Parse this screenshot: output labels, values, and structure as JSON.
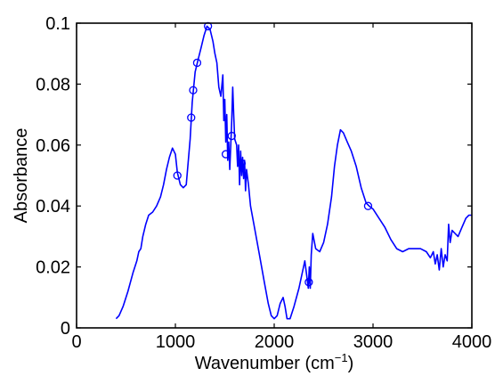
{
  "chart_data": {
    "type": "line",
    "title": "",
    "xlabel": "Wavenumber (cm",
    "xlabel_sup": "−1",
    "xlabel_close": ")",
    "ylabel": "Absorbance",
    "xlim": [
      0,
      4000
    ],
    "ylim": [
      0,
      0.1
    ],
    "x_ticks": [
      0,
      1000,
      2000,
      3000,
      4000
    ],
    "x_tick_labels": [
      "0",
      "1000",
      "2000",
      "3000",
      "4000"
    ],
    "y_ticks": [
      0,
      0.02,
      0.04,
      0.06,
      0.08,
      0.1
    ],
    "y_tick_labels": [
      "0",
      "0.02",
      "0.04",
      "0.06",
      "0.08",
      "0.1"
    ],
    "grid": false,
    "legend": "none",
    "line_color": "#0000ff",
    "series": [
      {
        "values": [
          [
            400,
            0.003
          ],
          [
            430,
            0.004
          ],
          [
            470,
            0.007
          ],
          [
            520,
            0.012
          ],
          [
            570,
            0.018
          ],
          [
            610,
            0.022
          ],
          [
            630,
            0.025
          ],
          [
            650,
            0.026
          ],
          [
            670,
            0.03
          ],
          [
            700,
            0.034
          ],
          [
            730,
            0.037
          ],
          [
            770,
            0.038
          ],
          [
            810,
            0.04
          ],
          [
            850,
            0.043
          ],
          [
            880,
            0.047
          ],
          [
            910,
            0.052
          ],
          [
            940,
            0.056
          ],
          [
            970,
            0.059
          ],
          [
            1000,
            0.057
          ],
          [
            1020,
            0.051
          ],
          [
            1050,
            0.047
          ],
          [
            1080,
            0.046
          ],
          [
            1110,
            0.047
          ],
          [
            1150,
            0.062
          ],
          [
            1170,
            0.074
          ],
          [
            1200,
            0.084
          ],
          [
            1230,
            0.088
          ],
          [
            1260,
            0.092
          ],
          [
            1290,
            0.096
          ],
          [
            1320,
            0.099
          ],
          [
            1350,
            0.098
          ],
          [
            1380,
            0.094
          ],
          [
            1400,
            0.09
          ],
          [
            1420,
            0.087
          ],
          [
            1440,
            0.079
          ],
          [
            1460,
            0.076
          ],
          [
            1480,
            0.083
          ],
          [
            1490,
            0.068
          ],
          [
            1500,
            0.075
          ],
          [
            1510,
            0.061
          ],
          [
            1520,
            0.07
          ],
          [
            1530,
            0.055
          ],
          [
            1540,
            0.061
          ],
          [
            1550,
            0.052
          ],
          [
            1560,
            0.06
          ],
          [
            1570,
            0.068
          ],
          [
            1580,
            0.079
          ],
          [
            1590,
            0.07
          ],
          [
            1600,
            0.062
          ],
          [
            1620,
            0.06
          ],
          [
            1630,
            0.053
          ],
          [
            1640,
            0.06
          ],
          [
            1650,
            0.047
          ],
          [
            1660,
            0.058
          ],
          [
            1670,
            0.05
          ],
          [
            1680,
            0.056
          ],
          [
            1690,
            0.049
          ],
          [
            1700,
            0.055
          ],
          [
            1710,
            0.045
          ],
          [
            1720,
            0.052
          ],
          [
            1740,
            0.047
          ],
          [
            1760,
            0.04
          ],
          [
            1800,
            0.033
          ],
          [
            1850,
            0.024
          ],
          [
            1900,
            0.015
          ],
          [
            1940,
            0.008
          ],
          [
            1970,
            0.004
          ],
          [
            2000,
            0.003
          ],
          [
            2030,
            0.004
          ],
          [
            2060,
            0.008
          ],
          [
            2090,
            0.01
          ],
          [
            2110,
            0.007
          ],
          [
            2130,
            0.003
          ],
          [
            2160,
            0.003
          ],
          [
            2200,
            0.007
          ],
          [
            2250,
            0.013
          ],
          [
            2290,
            0.019
          ],
          [
            2310,
            0.022
          ],
          [
            2330,
            0.017
          ],
          [
            2345,
            0.013
          ],
          [
            2355,
            0.02
          ],
          [
            2365,
            0.013
          ],
          [
            2375,
            0.024
          ],
          [
            2390,
            0.031
          ],
          [
            2420,
            0.026
          ],
          [
            2460,
            0.025
          ],
          [
            2500,
            0.028
          ],
          [
            2540,
            0.034
          ],
          [
            2580,
            0.043
          ],
          [
            2610,
            0.053
          ],
          [
            2640,
            0.06
          ],
          [
            2670,
            0.065
          ],
          [
            2700,
            0.064
          ],
          [
            2740,
            0.061
          ],
          [
            2780,
            0.058
          ],
          [
            2830,
            0.053
          ],
          [
            2880,
            0.046
          ],
          [
            2930,
            0.041
          ],
          [
            2960,
            0.04
          ],
          [
            3000,
            0.039
          ],
          [
            3060,
            0.036
          ],
          [
            3120,
            0.033
          ],
          [
            3180,
            0.029
          ],
          [
            3240,
            0.026
          ],
          [
            3300,
            0.025
          ],
          [
            3360,
            0.026
          ],
          [
            3420,
            0.026
          ],
          [
            3480,
            0.026
          ],
          [
            3540,
            0.025
          ],
          [
            3580,
            0.023
          ],
          [
            3610,
            0.025
          ],
          [
            3630,
            0.021
          ],
          [
            3650,
            0.024
          ],
          [
            3670,
            0.019
          ],
          [
            3690,
            0.026
          ],
          [
            3710,
            0.02
          ],
          [
            3730,
            0.024
          ],
          [
            3750,
            0.022
          ],
          [
            3765,
            0.034
          ],
          [
            3780,
            0.028
          ],
          [
            3800,
            0.032
          ],
          [
            3830,
            0.031
          ],
          [
            3860,
            0.03
          ],
          [
            3900,
            0.033
          ],
          [
            3940,
            0.036
          ],
          [
            3970,
            0.037
          ],
          [
            4000,
            0.037
          ]
        ]
      }
    ],
    "markers": [
      [
        1020,
        0.05
      ],
      [
        1160,
        0.069
      ],
      [
        1180,
        0.078
      ],
      [
        1220,
        0.087
      ],
      [
        1330,
        0.099
      ],
      [
        1510,
        0.057
      ],
      [
        1570,
        0.063
      ],
      [
        1670,
        0.054
      ],
      [
        2350,
        0.015
      ],
      [
        2950,
        0.04
      ]
    ]
  }
}
